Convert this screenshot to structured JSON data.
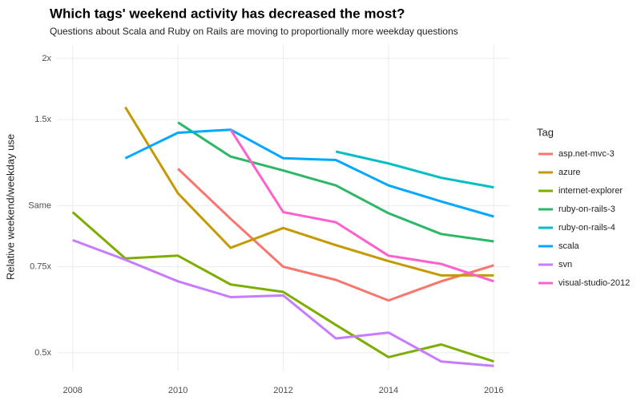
{
  "chart_data": {
    "type": "line",
    "title": "Which tags' weekend activity has decreased the most?",
    "subtitle": "Questions about Scala and Ruby on Rails are moving to proportionally more weekday questions",
    "y_label": "Relative weekend/weekday use",
    "legend_title": "Tag",
    "log_scale_y": true,
    "grid": true,
    "legend_position": "right",
    "x": [
      2008,
      2009,
      2010,
      2011,
      2012,
      2013,
      2014,
      2015,
      2016
    ],
    "xlim": [
      2007.7,
      2016.3
    ],
    "xticks": [
      2008,
      2010,
      2012,
      2014,
      2016
    ],
    "ylim": [
      0.46,
      2.14
    ],
    "yticks": [
      {
        "value": 0.5,
        "label": "0.5x"
      },
      {
        "value": 0.75,
        "label": "0.75x"
      },
      {
        "value": 1,
        "label": "Same"
      },
      {
        "value": 1.5,
        "label": "1.5x"
      },
      {
        "value": 2,
        "label": "2x"
      }
    ],
    "series": [
      {
        "name": "asp.net-mvc-3",
        "color": "#F8766D",
        "values": [
          null,
          null,
          1.19,
          0.94,
          0.75,
          0.705,
          0.64,
          0.7,
          0.755
        ]
      },
      {
        "name": "azure",
        "color": "#C49A00",
        "values": [
          null,
          1.59,
          1.06,
          0.82,
          0.9,
          0.83,
          0.77,
          0.72,
          0.72
        ]
      },
      {
        "name": "internet-explorer",
        "color": "#7CAE00",
        "values": [
          0.97,
          0.78,
          0.79,
          0.69,
          0.666,
          0.57,
          0.49,
          0.52,
          0.48
        ]
      },
      {
        "name": "ruby-on-rails-3",
        "color": "#2DB867",
        "values": [
          null,
          null,
          1.48,
          1.26,
          1.18,
          1.1,
          0.965,
          0.875,
          0.845
        ]
      },
      {
        "name": "ruby-on-rails-4",
        "color": "#00BFC4",
        "values": [
          null,
          null,
          null,
          null,
          null,
          1.29,
          1.22,
          1.14,
          1.09
        ]
      },
      {
        "name": "scala",
        "color": "#00A9FF",
        "values": [
          null,
          1.25,
          1.41,
          1.43,
          1.25,
          1.24,
          1.1,
          1.02,
          0.95
        ]
      },
      {
        "name": "svn",
        "color": "#C77CFF",
        "values": [
          0.85,
          0.775,
          0.7,
          0.65,
          0.655,
          0.535,
          0.55,
          0.48,
          0.47
        ]
      },
      {
        "name": "visual-studio-2012",
        "color": "#FF61CC",
        "values": [
          null,
          null,
          null,
          1.43,
          0.97,
          0.925,
          0.79,
          0.76,
          0.7
        ]
      }
    ]
  }
}
